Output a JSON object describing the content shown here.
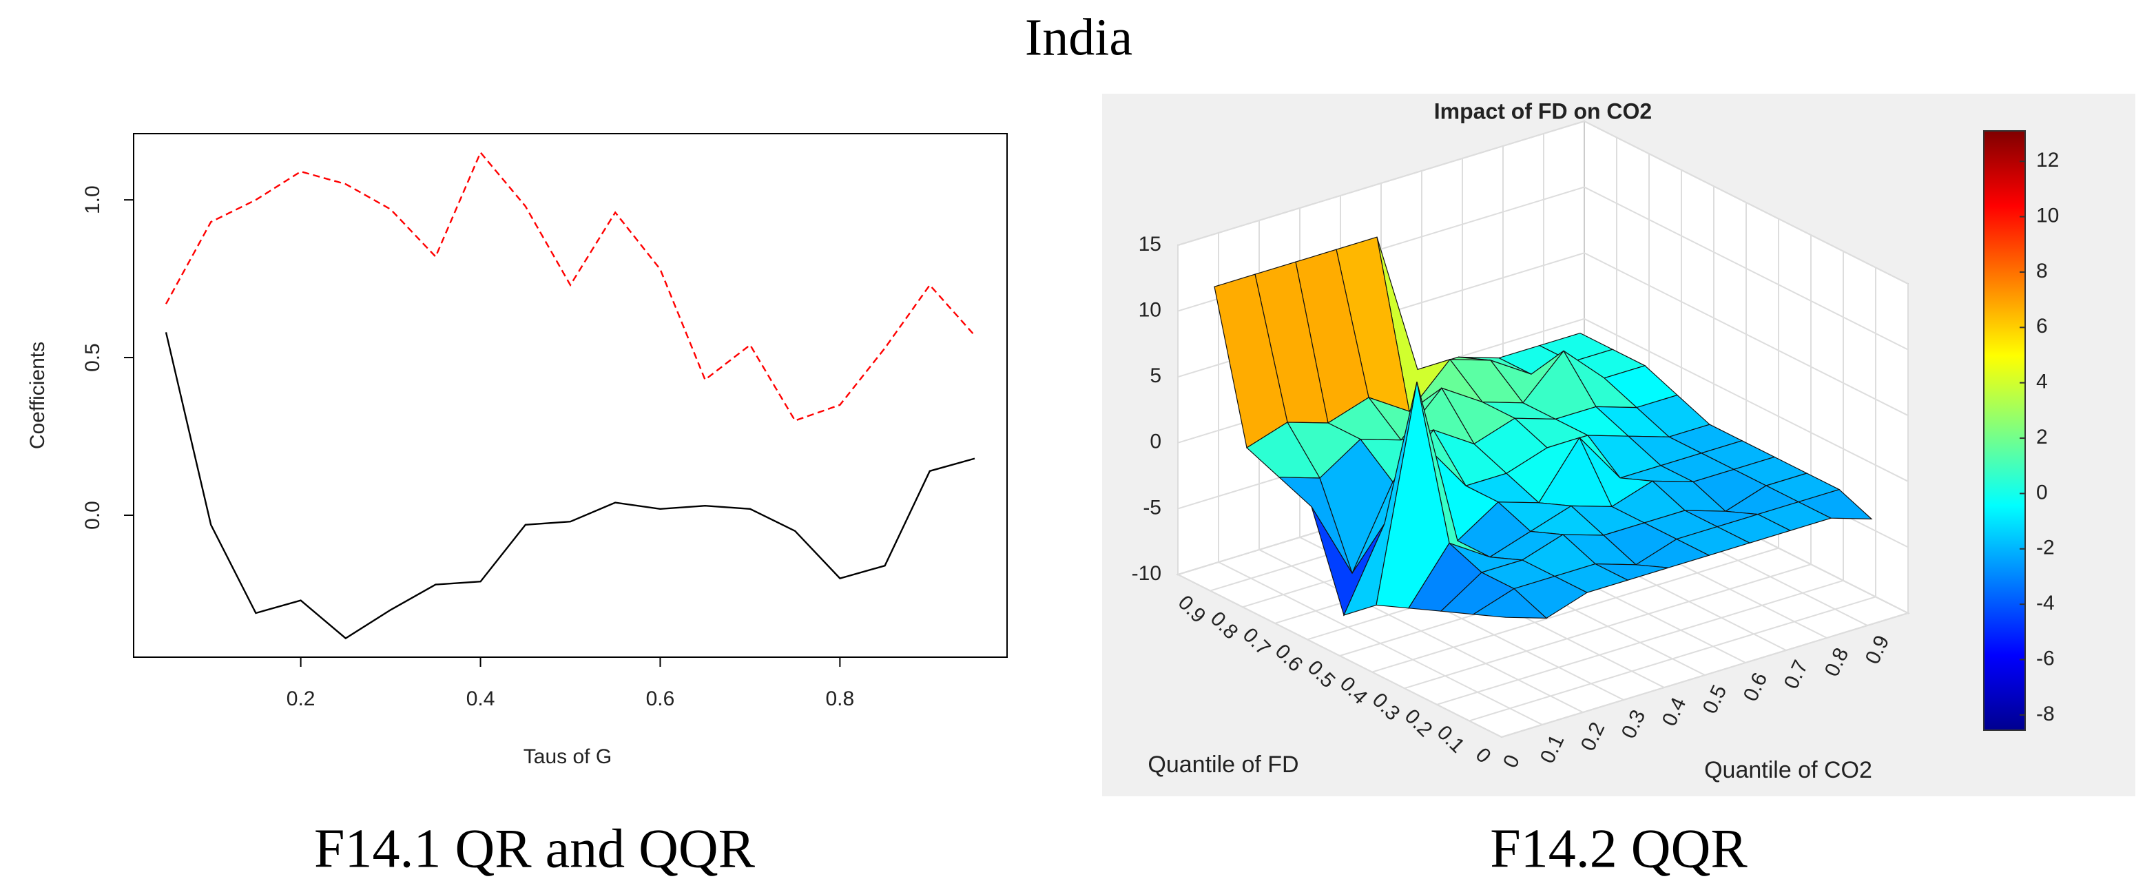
{
  "title": "India",
  "captions": [
    "F14.1 QR and QQR",
    "F14.2 QQR"
  ],
  "chart_data": [
    {
      "type": "line",
      "xlabel": "Taus of G",
      "ylabel": "Coefficients",
      "x": [
        0.05,
        0.1,
        0.15,
        0.2,
        0.25,
        0.3,
        0.35,
        0.4,
        0.45,
        0.5,
        0.55,
        0.6,
        0.65,
        0.7,
        0.75,
        0.8,
        0.85,
        0.9,
        0.95
      ],
      "series": [
        {
          "color": "#ff0000",
          "dashed": true,
          "values": [
            0.67,
            0.93,
            1.0,
            1.09,
            1.05,
            0.97,
            0.82,
            1.15,
            0.98,
            0.73,
            0.96,
            0.78,
            0.43,
            0.54,
            0.3,
            0.35,
            0.53,
            0.73,
            0.57
          ]
        },
        {
          "color": "#000000",
          "dashed": false,
          "values": [
            0.58,
            -0.03,
            -0.31,
            -0.27,
            -0.39,
            -0.3,
            -0.22,
            -0.21,
            -0.03,
            -0.02,
            0.04,
            0.02,
            0.03,
            0.02,
            -0.05,
            -0.2,
            -0.16,
            0.14,
            0.18
          ]
        }
      ],
      "xlim": [
        0.014,
        0.986
      ],
      "xticks": [
        0.2,
        0.4,
        0.6,
        0.8
      ],
      "ylim": [
        -0.45,
        1.21
      ],
      "yticks": [
        {
          "value": 0,
          "label": "0.0"
        },
        0.5,
        {
          "value": 1,
          "label": "1.0"
        }
      ]
    },
    {
      "type": "surface",
      "title": "Impact of FD  on CO2",
      "xlabel": "Quantile of FD",
      "ylabel": "Quantile of CO2",
      "x": [
        0.05,
        0.15,
        0.25,
        0.35,
        0.45,
        0.55,
        0.65,
        0.75,
        0.85,
        0.95
      ],
      "y": [
        0.05,
        0.15,
        0.25,
        0.35,
        0.45,
        0.55,
        0.65,
        0.75,
        0.85,
        0.95
      ],
      "z": [
        [
          -2,
          -3,
          -2,
          -2,
          -2,
          -2,
          -2,
          -2,
          -2,
          -3
        ],
        [
          -3,
          -2,
          -2,
          -2,
          -3,
          -2,
          -2,
          -2,
          -2,
          -2
        ],
        [
          -4,
          -2,
          -2,
          -1,
          -2,
          -2,
          -2,
          -3,
          -2,
          -2
        ],
        [
          -5,
          -1,
          -3,
          -2,
          -1,
          -2,
          -1,
          -2,
          -2,
          -2
        ],
        [
          -6,
          10,
          -3,
          -1,
          -2,
          2,
          -2,
          -2,
          -2,
          -2
        ],
        [
          -8,
          -2,
          3,
          -1,
          -1,
          0,
          0,
          -1,
          -2,
          -2
        ],
        [
          -1,
          -7,
          -1,
          2,
          0,
          1,
          0,
          0,
          -1,
          -1
        ],
        [
          0,
          -1,
          1,
          0,
          3,
          1,
          0,
          3,
          0,
          0
        ],
        [
          1,
          2,
          1,
          2,
          0,
          3,
          2,
          0,
          0,
          0
        ],
        [
          12,
          12,
          12,
          12,
          12,
          1,
          1,
          0,
          0,
          0
        ]
      ],
      "xlim": [
        0,
        1
      ],
      "xticks": [
        0,
        0.1,
        0.2,
        0.3,
        0.4,
        0.5,
        0.6,
        0.7,
        0.8,
        0.9
      ],
      "ylim": [
        0,
        1
      ],
      "yticks": [
        0,
        0.1,
        0.2,
        0.3,
        0.4,
        0.5,
        0.6,
        0.7,
        0.8,
        0.9
      ],
      "zlim": [
        -10,
        15
      ],
      "zticks": [
        -10,
        -5,
        0,
        5,
        10,
        15
      ],
      "clim": [
        -8.55,
        13.1
      ],
      "cticks": [
        -8,
        -6,
        -4,
        -2,
        0,
        2,
        4,
        6,
        8,
        10,
        12
      ],
      "colormap": "jet"
    }
  ]
}
